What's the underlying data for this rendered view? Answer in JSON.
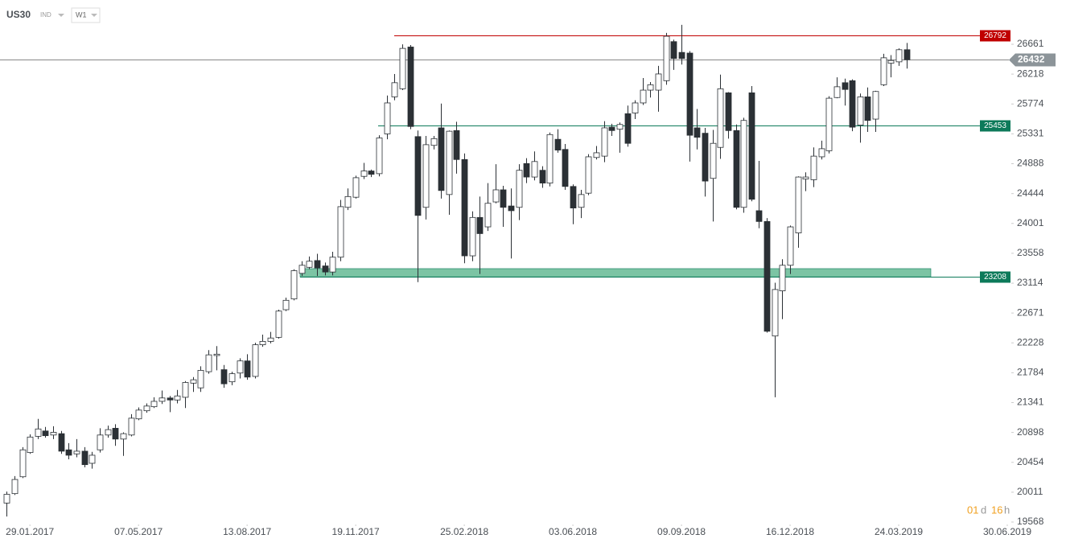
{
  "header": {
    "symbol": "US30",
    "market": "IND",
    "interval": "W1"
  },
  "timer": {
    "days": "01",
    "days_unit": "d",
    "hours": "16",
    "hours_unit": "h"
  },
  "chart_data": {
    "type": "candlestick",
    "x": [
      "2017-01-08",
      "2017-01-15",
      "2017-01-22",
      "2017-01-29",
      "2017-02-05",
      "2017-02-12",
      "2017-02-19",
      "2017-02-26",
      "2017-03-05",
      "2017-03-12",
      "2017-03-19",
      "2017-03-26",
      "2017-04-02",
      "2017-04-09",
      "2017-04-16",
      "2017-04-23",
      "2017-04-30",
      "2017-05-07",
      "2017-05-14",
      "2017-05-21",
      "2017-05-28",
      "2017-06-04",
      "2017-06-11",
      "2017-06-18",
      "2017-06-25",
      "2017-07-02",
      "2017-07-09",
      "2017-07-16",
      "2017-07-23",
      "2017-07-30",
      "2017-08-06",
      "2017-08-13",
      "2017-08-20",
      "2017-08-27",
      "2017-09-03",
      "2017-09-10",
      "2017-09-17",
      "2017-09-24",
      "2017-10-01",
      "2017-10-08",
      "2017-10-15",
      "2017-10-22",
      "2017-10-29",
      "2017-11-05",
      "2017-11-12",
      "2017-11-19",
      "2017-11-26",
      "2017-12-03",
      "2017-12-10",
      "2017-12-17",
      "2017-12-24",
      "2017-12-31",
      "2018-01-07",
      "2018-01-14",
      "2018-01-21",
      "2018-01-28",
      "2018-02-04",
      "2018-02-11",
      "2018-02-18",
      "2018-02-25",
      "2018-03-04",
      "2018-03-11",
      "2018-03-18",
      "2018-03-25",
      "2018-04-01",
      "2018-04-08",
      "2018-04-15",
      "2018-04-22",
      "2018-04-29",
      "2018-05-06",
      "2018-05-13",
      "2018-05-20",
      "2018-05-27",
      "2018-06-03",
      "2018-06-10",
      "2018-06-17",
      "2018-06-24",
      "2018-07-01",
      "2018-07-08",
      "2018-07-15",
      "2018-07-22",
      "2018-07-29",
      "2018-08-05",
      "2018-08-12",
      "2018-08-19",
      "2018-08-26",
      "2018-09-02",
      "2018-09-09",
      "2018-09-16",
      "2018-09-23",
      "2018-09-30",
      "2018-10-07",
      "2018-10-14",
      "2018-10-21",
      "2018-10-28",
      "2018-11-04",
      "2018-11-11",
      "2018-11-18",
      "2018-11-25",
      "2018-12-02",
      "2018-12-09",
      "2018-12-16",
      "2018-12-23",
      "2018-12-30",
      "2019-01-06",
      "2019-01-13",
      "2019-01-20",
      "2019-01-27",
      "2019-02-03",
      "2019-02-10",
      "2019-02-17",
      "2019-02-24",
      "2019-03-03",
      "2019-03-10",
      "2019-03-17",
      "2019-03-24",
      "2019-03-31"
    ],
    "open": [
      19850,
      19990,
      20240,
      20600,
      20840,
      20920,
      20860,
      20880,
      20640,
      20580,
      20620,
      20440,
      20640,
      20860,
      20960,
      20800,
      20860,
      21100,
      21220,
      21280,
      21360,
      21410,
      21380,
      21420,
      21630,
      21560,
      21800,
      22040,
      21830,
      21650,
      21780,
      21960,
      21730,
      22200,
      22250,
      22310,
      22720,
      22880,
      23260,
      23350,
      23450,
      23370,
      23280,
      23500,
      24240,
      24390,
      24700,
      24780,
      24740,
      25330,
      25880,
      26000,
      26620,
      25290,
      24240,
      25160,
      25420,
      24430,
      25380,
      24950,
      23520,
      24090,
      23950,
      24320,
      24500,
      24260,
      24240,
      24890,
      24690,
      24790,
      24600,
      25250,
      25100,
      24550,
      24240,
      24450,
      24980,
      25000,
      25430,
      25400,
      25630,
      25640,
      25790,
      25980,
      25980,
      26120,
      26700,
      26540,
      26530,
      25420,
      25340,
      24670,
      25130,
      25940,
      25380,
      24240,
      25940,
      24190,
      24030,
      22330,
      23000,
      23380,
      23860,
      24660,
      24650,
      24990,
      25080,
      25870,
      26090,
      26120,
      25460,
      25880,
      25550,
      26060,
      26380,
      26400,
      26580
    ],
    "high": [
      20020,
      20250,
      20680,
      20870,
      21100,
      20980,
      20990,
      20920,
      20740,
      20800,
      20680,
      20610,
      20960,
      21000,
      21020,
      20900,
      21170,
      21270,
      21330,
      21420,
      21520,
      21440,
      21530,
      21660,
      21720,
      21880,
      22120,
      22180,
      21900,
      21800,
      22000,
      22060,
      22230,
      22350,
      22390,
      22720,
      22900,
      23320,
      23440,
      23510,
      23550,
      23420,
      23580,
      24350,
      24520,
      24710,
      24900,
      24800,
      25310,
      25900,
      26220,
      26660,
      26650,
      25380,
      25300,
      25300,
      25780,
      25380,
      25510,
      25040,
      24180,
      24400,
      24600,
      24880,
      24560,
      24520,
      24880,
      24970,
      25070,
      24850,
      25350,
      25400,
      25180,
      24580,
      24500,
      25030,
      25150,
      25520,
      25480,
      25500,
      25750,
      25830,
      26160,
      26100,
      26340,
      26830,
      26730,
      26950,
      26560,
      25700,
      25420,
      25390,
      26210,
      25950,
      25470,
      25570,
      26040,
      24930,
      24080,
      23120,
      23470,
      23970,
      24700,
      24760,
      25130,
      25230,
      25890,
      26170,
      26150,
      26140,
      25930,
      26020,
      25970,
      26520,
      26500,
      26600,
      26680
    ],
    "low": [
      19650,
      19970,
      20220,
      20580,
      20800,
      20820,
      20800,
      20580,
      20500,
      20530,
      20380,
      20360,
      20600,
      20820,
      20700,
      20550,
      20840,
      21080,
      21190,
      21260,
      21320,
      21200,
      21330,
      21260,
      21500,
      21500,
      21770,
      21820,
      21560,
      21600,
      21700,
      21680,
      21700,
      22170,
      22220,
      22290,
      22700,
      22860,
      23220,
      23320,
      23220,
      23230,
      23230,
      23440,
      24200,
      24370,
      24660,
      24690,
      24700,
      25250,
      25830,
      25980,
      25400,
      23130,
      24060,
      25100,
      24370,
      24130,
      24740,
      23410,
      23440,
      23250,
      23890,
      24300,
      23950,
      23480,
      24050,
      24600,
      24640,
      24530,
      24550,
      25050,
      24500,
      23990,
      24080,
      24420,
      24950,
      24910,
      25300,
      25050,
      25140,
      25550,
      25760,
      25870,
      25660,
      26060,
      26280,
      26360,
      24920,
      25100,
      24400,
      24030,
      24960,
      25260,
      24210,
      24160,
      24330,
      23930,
      22380,
      21420,
      22580,
      23250,
      23640,
      24480,
      24540,
      24950,
      25040,
      25860,
      25750,
      25370,
      25200,
      25360,
      25360,
      26040,
      26170,
      26340,
      26300
    ],
    "close": [
      19980,
      20200,
      20640,
      20830,
      20950,
      20850,
      20900,
      20620,
      20560,
      20620,
      20420,
      20560,
      20860,
      20940,
      20800,
      20880,
      21110,
      21230,
      21290,
      21360,
      21410,
      21380,
      21440,
      21640,
      21680,
      21820,
      22050,
      22060,
      21620,
      21770,
      21960,
      21720,
      22200,
      22250,
      22300,
      22700,
      22860,
      23300,
      23380,
      23440,
      23340,
      23280,
      23500,
      24250,
      24400,
      24680,
      24780,
      24730,
      25270,
      25790,
      26090,
      26600,
      25440,
      24120,
      25170,
      25260,
      24490,
      25370,
      24950,
      23520,
      24090,
      23850,
      24300,
      24500,
      24240,
      24190,
      24790,
      24690,
      24920,
      24600,
      25320,
      25090,
      24550,
      24230,
      24430,
      24990,
      25050,
      25420,
      25380,
      25470,
      25190,
      25790,
      25980,
      26060,
      26220,
      26780,
      26450,
      26450,
      25310,
      25280,
      24630,
      25190,
      26000,
      25380,
      24240,
      25530,
      24360,
      24030,
      22400,
      23020,
      23380,
      23950,
      24690,
      24690,
      25000,
      25110,
      25860,
      26030,
      25990,
      25430,
      25880,
      25530,
      25960,
      26460,
      26420,
      26580,
      26432
    ],
    "up_color": "#ffffff",
    "down_color": "#2b3035",
    "xlim": [
      "2017-01-02",
      "2019-06-30"
    ],
    "xticks": [
      {
        "value": "2017-01-29",
        "label": "29.01.2017"
      },
      {
        "value": "2017-05-07",
        "label": "07.05.2017"
      },
      {
        "value": "2017-08-13",
        "label": "13.08.2017"
      },
      {
        "value": "2017-11-19",
        "label": "19.11.2017"
      },
      {
        "value": "2018-02-25",
        "label": "25.02.2018"
      },
      {
        "value": "2018-06-03",
        "label": "03.06.2018"
      },
      {
        "value": "2018-09-09",
        "label": "09.09.2018"
      },
      {
        "value": "2018-12-16",
        "label": "16.12.2018"
      },
      {
        "value": "2019-03-24",
        "label": "24.03.2019"
      },
      {
        "value": "2019-06-30",
        "label": "30.06.2019"
      }
    ],
    "ylim": [
      19568,
      27318
    ],
    "yticks": [
      19568,
      20011,
      20454,
      20898,
      21341,
      21784,
      22228,
      22671,
      23114,
      23558,
      24001,
      24444,
      24888,
      25331,
      25774,
      26218,
      26661
    ],
    "levels": [
      {
        "value": 26792,
        "color": "#c00000"
      },
      {
        "value": 25453,
        "color": "#0d7a5a"
      },
      {
        "value": 23208,
        "color": "#0d7a5a"
      }
    ],
    "zone": {
      "low": 23208,
      "high": 23330,
      "color": "#7cc4a4"
    },
    "last_price": 26432,
    "last_price_color": "#8c9499"
  }
}
